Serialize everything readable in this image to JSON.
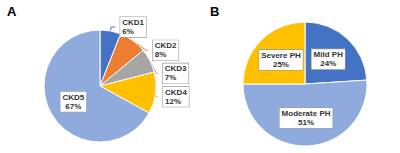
{
  "chart_data": [
    {
      "type": "pie",
      "title": "A",
      "categories": [
        "CKD1",
        "CKD2",
        "CKD3",
        "CKD4",
        "CKD5"
      ],
      "values": [
        6,
        8,
        7,
        12,
        67
      ],
      "value_labels": [
        "6%",
        "8%",
        "7%",
        "12%",
        "67%"
      ],
      "colors": [
        "#4472c4",
        "#ed7d31",
        "#a5a5a5",
        "#ffc000",
        "#8faadc"
      ],
      "data_labels": true
    },
    {
      "type": "pie",
      "title": "B",
      "categories": [
        "Mild PH",
        "Moderate PH",
        "Severe PH"
      ],
      "values": [
        24,
        51,
        25
      ],
      "value_labels": [
        "24%",
        "51%",
        "25%"
      ],
      "colors": [
        "#4472c4",
        "#8faadc",
        "#ffc000"
      ],
      "data_labels": true
    }
  ]
}
